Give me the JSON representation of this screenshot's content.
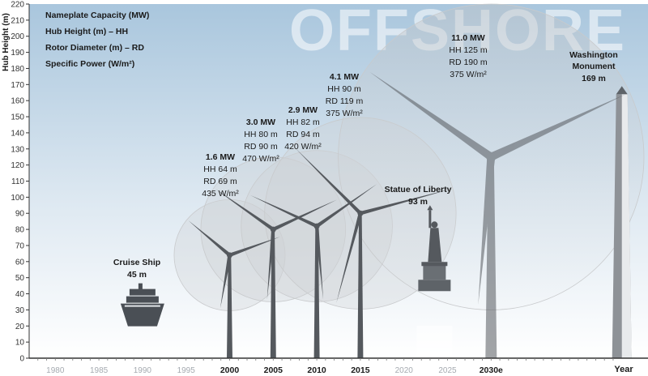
{
  "chart_data": {
    "type": "scatter",
    "watermark": "OFFSHORE",
    "ylabel": "Hub Height (m)",
    "xlabel": "Year",
    "ylim": [
      0,
      220
    ],
    "yticks": [
      0,
      10,
      20,
      30,
      40,
      50,
      60,
      70,
      80,
      90,
      100,
      110,
      120,
      130,
      140,
      150,
      160,
      170,
      180,
      190,
      200,
      210,
      220
    ],
    "xlim": [
      1977,
      2048
    ],
    "xticks": [
      {
        "value": 1980,
        "label": "1980",
        "bold": false
      },
      {
        "value": 1985,
        "label": "1985",
        "bold": false
      },
      {
        "value": 1990,
        "label": "1990",
        "bold": false
      },
      {
        "value": 1995,
        "label": "1995",
        "bold": false
      },
      {
        "value": 2000,
        "label": "2000",
        "bold": true
      },
      {
        "value": 2005,
        "label": "2005",
        "bold": true
      },
      {
        "value": 2010,
        "label": "2010",
        "bold": true
      },
      {
        "value": 2015,
        "label": "2015",
        "bold": true
      },
      {
        "value": 2020,
        "label": "2020",
        "bold": false
      },
      {
        "value": 2025,
        "label": "2025",
        "bold": false
      },
      {
        "value": 2030,
        "label": "2030e",
        "bold": true
      }
    ],
    "legend": [
      "Nameplate Capacity (MW)",
      "Hub Height (m) – HH",
      "Rotor Diameter (m) – RD",
      "Specific Power (W/m²)"
    ],
    "turbines": [
      {
        "year": 2000,
        "capacity": "1.6 MW",
        "hub_height": 64,
        "rotor_diameter": 69,
        "specific_power": 435,
        "hh_label": "HH 64 m",
        "rd_label": "RD 69 m",
        "sp_label": "435 W/m²"
      },
      {
        "year": 2005,
        "capacity": "3.0 MW",
        "hub_height": 80,
        "rotor_diameter": 90,
        "specific_power": 470,
        "hh_label": "HH 80 m",
        "rd_label": "RD 90 m",
        "sp_label": "470 W/m²"
      },
      {
        "year": 2010,
        "capacity": "2.9 MW",
        "hub_height": 82,
        "rotor_diameter": 94,
        "specific_power": 420,
        "hh_label": "HH 82 m",
        "rd_label": "RD 94 m",
        "sp_label": "420 W/m²"
      },
      {
        "year": 2015,
        "capacity": "4.1 MW",
        "hub_height": 90,
        "rotor_diameter": 119,
        "specific_power": 375,
        "hh_label": "HH 90 m",
        "rd_label": "RD 119 m",
        "sp_label": "375 W/m²"
      },
      {
        "year": 2030,
        "capacity": "11.0 MW",
        "hub_height": 125,
        "rotor_diameter": 190,
        "specific_power": 375,
        "hh_label": "HH 125 m",
        "rd_label": "RD 190 m",
        "sp_label": "375 W/m²"
      }
    ],
    "references": [
      {
        "name": "Cruise Ship",
        "height": 45,
        "height_label": "45 m",
        "x": 1990
      },
      {
        "name": "Statue of Liberty",
        "height": 93,
        "height_label": "93 m",
        "x": 2023.5
      },
      {
        "name": "Washington Monument",
        "height": 169,
        "height_label": "169 m",
        "x": 2045
      }
    ],
    "colors": {
      "sky_top": "#a9c6dd",
      "sky_bottom": "#ffffff",
      "turbine": "#55595e",
      "rotor_circle": "#c8cacc",
      "axis": "#333333",
      "tick_label_faded": "#a5aab0"
    }
  }
}
